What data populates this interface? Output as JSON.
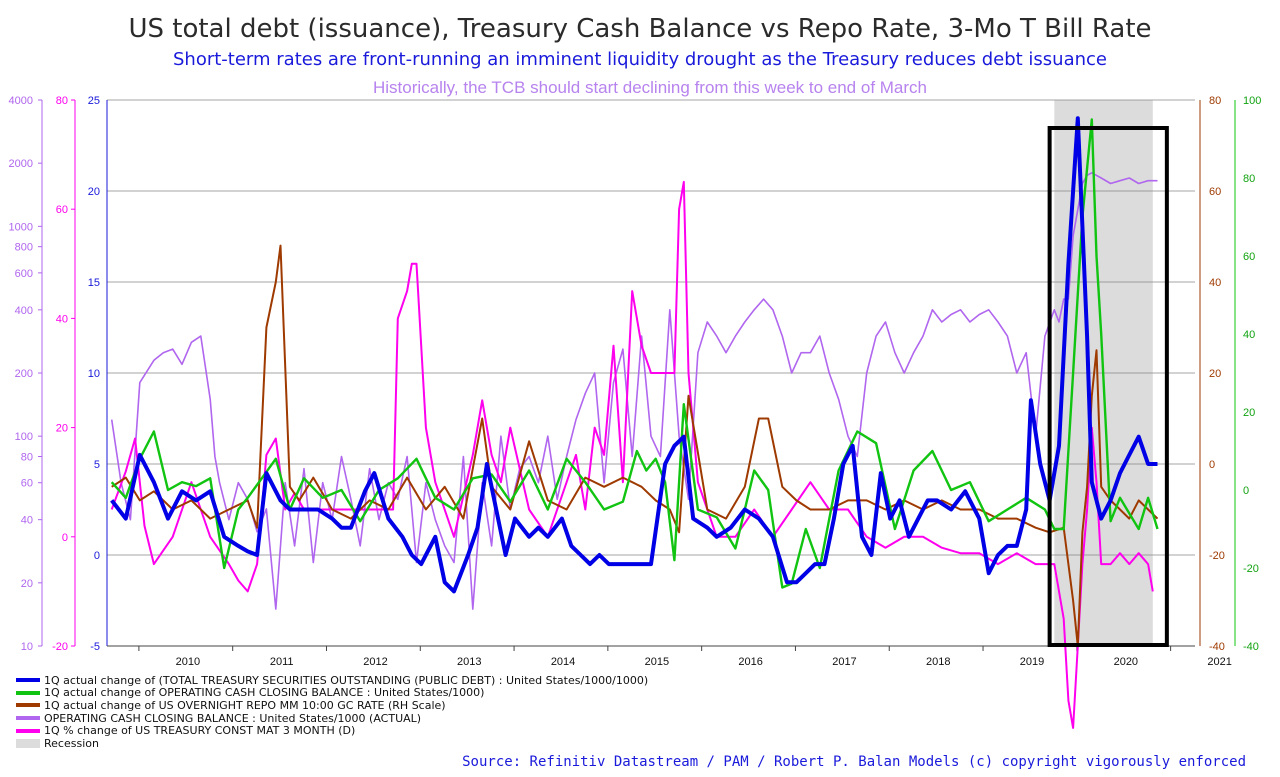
{
  "title": "US total debt (issuance), Treasury Cash Balance vs Repo Rate, 3-Mo T Bill Rate",
  "subtitle": "Short-term rates are front-running an imminent liquidity drought as the Treasury reduces debt issuance",
  "note": "Historically, the TCB should start declining from this week to end of March",
  "source": "Source: Refinitiv Datastream / PAM /  Robert P. Balan Models (c) copyright vigorously enforced",
  "colors": {
    "debt": "#0000e6",
    "cash_change": "#11c411",
    "repo": "#9e3a00",
    "cash_balance": "#b066ee",
    "tbill": "#ff00ee",
    "recession": "#dcdcdc",
    "box": "#000000"
  },
  "legend": [
    {
      "label": "1Q actual change of (TOTAL TREASURY SECURITIES OUTSTANDING (PUBLIC DEBT) : United States/1000/1000)",
      "color": "#0000e6",
      "kind": "line"
    },
    {
      "label": "1Q actual change of OPERATING CASH CLOSING BALANCE : United States/1000)",
      "color": "#11c411",
      "kind": "line"
    },
    {
      "label": "1Q actual change of US OVERNIGHT REPO MM 10:00 GC RATE (RH Scale)",
      "color": "#9e3a00",
      "kind": "line"
    },
    {
      "label": "OPERATING CASH CLOSING BALANCE : United States/1000 (ACTUAL)",
      "color": "#b066ee",
      "kind": "line"
    },
    {
      "label": "1Q % change of US TREASURY CONST MAT 3 MONTH (D)",
      "color": "#ff00ee",
      "kind": "line"
    },
    {
      "label": "Recession",
      "color": "#dcdcdc",
      "kind": "box"
    }
  ],
  "chart_data": {
    "type": "line",
    "x_axis": {
      "ticks": [
        "2010",
        "2011",
        "2012",
        "2013",
        "2014",
        "2015",
        "2016",
        "2017",
        "2018",
        "2019",
        "2020",
        "2021"
      ],
      "range": [
        2009.5,
        2021.1
      ]
    },
    "recession_band": {
      "from": 2019.6,
      "to": 2020.65
    },
    "highlight_box": {
      "from": 2019.55,
      "to": 2020.8
    },
    "axes": {
      "left_log_purple": {
        "ticks": [
          "4000",
          "2000",
          "1000",
          "800",
          "600",
          "400",
          "200",
          "100",
          "80",
          "60",
          "40",
          "20",
          "10"
        ],
        "scale": "log"
      },
      "left_magenta": {
        "ticks": [
          "80",
          "60",
          "40",
          "20",
          "0",
          "-20"
        ],
        "range": [
          -20,
          80
        ]
      },
      "left_blue": {
        "ticks": [
          "25",
          "20",
          "15",
          "10",
          "5",
          "0",
          "-5"
        ],
        "range": [
          -5,
          25
        ]
      },
      "right_brown": {
        "ticks": [
          "80",
          "60",
          "40",
          "20",
          "0",
          "-20",
          "-40"
        ],
        "range": [
          -40,
          80
        ]
      },
      "right_green": {
        "ticks": [
          "100",
          "80",
          "60",
          "40",
          "20",
          "0",
          "-20",
          "-40"
        ],
        "range": [
          -40,
          100
        ]
      }
    },
    "series": [
      {
        "name": "1Q actual change of (TOTAL TREASURY SECURITIES OUTSTANDING (PUBLIC DEBT) : United States/1000/1000)",
        "axis": "left_blue",
        "x": [
          2009.55,
          2009.7,
          2009.85,
          2010.0,
          2010.15,
          2010.3,
          2010.45,
          2010.6,
          2010.75,
          2010.9,
          2011.0,
          2011.1,
          2011.2,
          2011.35,
          2011.45,
          2011.6,
          2011.75,
          2011.9,
          2012.0,
          2012.1,
          2012.25,
          2012.35,
          2012.5,
          2012.65,
          2012.75,
          2012.85,
          2012.95,
          2013.0,
          2013.1,
          2013.2,
          2013.35,
          2013.45,
          2013.55,
          2013.65,
          2013.75,
          2013.85,
          2014.0,
          2014.1,
          2014.2,
          2014.35,
          2014.45,
          2014.55,
          2014.65,
          2014.75,
          2014.85,
          2015.0,
          2015.15,
          2015.3,
          2015.45,
          2015.55,
          2015.65,
          2015.75,
          2015.9,
          2016.0,
          2016.15,
          2016.3,
          2016.45,
          2016.6,
          2016.75,
          2016.85,
          2016.95,
          2017.05,
          2017.15,
          2017.25,
          2017.35,
          2017.45,
          2017.55,
          2017.65,
          2017.75,
          2017.85,
          2017.95,
          2018.05,
          2018.15,
          2018.25,
          2018.35,
          2018.5,
          2018.65,
          2018.8,
          2018.9,
          2019.0,
          2019.1,
          2019.2,
          2019.3,
          2019.35,
          2019.45,
          2019.55,
          2019.65,
          2019.75,
          2019.85,
          2019.95,
          2020.0,
          2020.1,
          2020.2,
          2020.3,
          2020.4,
          2020.5,
          2020.6,
          2020.7
        ],
        "values": [
          3.0,
          2.0,
          5.5,
          4.0,
          2.0,
          3.5,
          3.0,
          3.5,
          1.0,
          0.5,
          0.2,
          0.0,
          4.5,
          3.0,
          2.5,
          2.5,
          2.5,
          2.0,
          1.5,
          1.5,
          3.5,
          4.5,
          2.0,
          1.0,
          0.0,
          -0.5,
          0.5,
          1.0,
          -1.5,
          -2.0,
          0.0,
          1.5,
          5.0,
          2.5,
          0.0,
          2.0,
          1.0,
          1.5,
          1.0,
          2.0,
          0.5,
          0.0,
          -0.5,
          0.0,
          -0.5,
          -0.5,
          -0.5,
          -0.5,
          5.0,
          6.0,
          6.5,
          2.0,
          1.5,
          1.0,
          1.5,
          2.5,
          2.0,
          1.0,
          -1.5,
          -1.5,
          -1.0,
          -0.5,
          -0.5,
          2.0,
          5.0,
          6.0,
          1.0,
          0.0,
          4.5,
          2.0,
          3.0,
          1.0,
          2.0,
          3.0,
          3.0,
          2.5,
          3.5,
          2.0,
          -1.0,
          0.0,
          0.5,
          0.5,
          2.5,
          8.5,
          5.0,
          3.0,
          6.0,
          16.0,
          24.0,
          12.0,
          4.0,
          2.0,
          3.0,
          4.5,
          5.5,
          6.5,
          5.0,
          5.0
        ]
      },
      {
        "name": "1Q actual change of OPERATING CASH CLOSING BALANCE : United States/1000)",
        "axis": "right_green",
        "x": [
          2009.55,
          2009.7,
          2009.85,
          2010.0,
          2010.15,
          2010.3,
          2010.45,
          2010.6,
          2010.75,
          2010.9,
          2011.0,
          2011.15,
          2011.3,
          2011.45,
          2011.6,
          2011.8,
          2012.0,
          2012.2,
          2012.4,
          2012.6,
          2012.8,
          2013.0,
          2013.2,
          2013.4,
          2013.6,
          2013.8,
          2014.0,
          2014.2,
          2014.4,
          2014.6,
          2014.8,
          2015.0,
          2015.15,
          2015.25,
          2015.35,
          2015.45,
          2015.55,
          2015.65,
          2015.8,
          2016.0,
          2016.2,
          2016.4,
          2016.55,
          2016.7,
          2016.8,
          2016.95,
          2017.1,
          2017.3,
          2017.5,
          2017.7,
          2017.9,
          2018.1,
          2018.3,
          2018.5,
          2018.7,
          2018.9,
          2019.1,
          2019.3,
          2019.5,
          2019.6,
          2019.7,
          2019.8,
          2019.9,
          2020.0,
          2020.05,
          2020.1,
          2020.2,
          2020.3,
          2020.4,
          2020.5,
          2020.6,
          2020.7
        ],
        "values": [
          2,
          -2,
          8,
          15,
          0,
          2,
          1,
          3,
          -20,
          -5,
          -2,
          3,
          8,
          -5,
          3,
          -2,
          0,
          -8,
          0,
          3,
          8,
          -2,
          -5,
          3,
          4,
          -3,
          5,
          -5,
          8,
          2,
          -5,
          -3,
          10,
          5,
          8,
          2,
          -18,
          22,
          -5,
          -7,
          -15,
          5,
          0,
          -25,
          -24,
          -10,
          -20,
          5,
          15,
          12,
          -10,
          5,
          10,
          0,
          2,
          -8,
          -5,
          -2,
          -5,
          -10,
          -10,
          30,
          70,
          95,
          60,
          40,
          -8,
          -2,
          -6,
          -10,
          -2,
          -10
        ]
      },
      {
        "name": "1Q actual change of US OVERNIGHT REPO MM 10:00 GC RATE (RH Scale)",
        "axis": "right_brown",
        "x": [
          2009.55,
          2009.7,
          2009.85,
          2010.0,
          2010.2,
          2010.4,
          2010.6,
          2010.8,
          2011.0,
          2011.1,
          2011.2,
          2011.3,
          2011.35,
          2011.45,
          2011.55,
          2011.7,
          2011.9,
          2012.1,
          2012.3,
          2012.5,
          2012.7,
          2012.9,
          2013.1,
          2013.3,
          2013.5,
          2013.6,
          2013.8,
          2014.0,
          2014.2,
          2014.4,
          2014.6,
          2014.8,
          2015.0,
          2015.2,
          2015.35,
          2015.5,
          2015.6,
          2015.7,
          2015.9,
          2016.1,
          2016.3,
          2016.45,
          2016.55,
          2016.7,
          2016.85,
          2017.0,
          2017.2,
          2017.4,
          2017.6,
          2017.8,
          2018.0,
          2018.2,
          2018.4,
          2018.6,
          2018.8,
          2019.0,
          2019.2,
          2019.4,
          2019.55,
          2019.7,
          2019.8,
          2019.85,
          2019.9,
          2019.95,
          2020.0,
          2020.05,
          2020.1,
          2020.2,
          2020.3,
          2020.4,
          2020.5,
          2020.6,
          2020.7
        ],
        "values": [
          -5,
          -3,
          -8,
          -6,
          -10,
          -8,
          -12,
          -10,
          -8,
          -14,
          30,
          40,
          48,
          -5,
          -8,
          -3,
          -10,
          -12,
          -8,
          -10,
          -3,
          -10,
          -5,
          -12,
          10,
          -5,
          -10,
          5,
          -8,
          -10,
          -3,
          -5,
          -3,
          -5,
          -8,
          -10,
          -15,
          15,
          -10,
          -12,
          -5,
          10,
          10,
          -5,
          -8,
          -10,
          -10,
          -8,
          -8,
          -10,
          -8,
          -10,
          -8,
          -10,
          -10,
          -12,
          -12,
          -14,
          -15,
          -14,
          -30,
          -40,
          -15,
          -5,
          15,
          25,
          -5,
          -8,
          -10,
          -12,
          -8,
          -10,
          -12
        ]
      },
      {
        "name": "OPERATING CASH CLOSING BALANCE : United States/1000 (ACTUAL)",
        "axis": "left_log_purple",
        "x": [
          2009.55,
          2009.65,
          2009.75,
          2009.85,
          2010.0,
          2010.1,
          2010.2,
          2010.3,
          2010.4,
          2010.5,
          2010.6,
          2010.65,
          2010.7,
          2010.8,
          2010.9,
          2011.0,
          2011.1,
          2011.2,
          2011.3,
          2011.4,
          2011.5,
          2011.6,
          2011.7,
          2011.8,
          2011.9,
          2012.0,
          2012.1,
          2012.2,
          2012.3,
          2012.4,
          2012.5,
          2012.6,
          2012.7,
          2012.8,
          2012.9,
          2013.0,
          2013.1,
          2013.2,
          2013.3,
          2013.4,
          2013.5,
          2013.6,
          2013.7,
          2013.8,
          2013.9,
          2014.0,
          2014.1,
          2014.2,
          2014.3,
          2014.4,
          2014.5,
          2014.6,
          2014.7,
          2014.8,
          2014.9,
          2015.0,
          2015.1,
          2015.2,
          2015.3,
          2015.4,
          2015.5,
          2015.6,
          2015.7,
          2015.8,
          2015.9,
          2016.0,
          2016.1,
          2016.2,
          2016.3,
          2016.4,
          2016.5,
          2016.6,
          2016.7,
          2016.8,
          2016.9,
          2017.0,
          2017.1,
          2017.2,
          2017.3,
          2017.4,
          2017.5,
          2017.6,
          2017.7,
          2017.8,
          2017.9,
          2018.0,
          2018.1,
          2018.2,
          2018.3,
          2018.4,
          2018.5,
          2018.6,
          2018.7,
          2018.8,
          2018.9,
          2019.0,
          2019.1,
          2019.2,
          2019.3,
          2019.4,
          2019.5,
          2019.6,
          2019.65,
          2019.7,
          2019.75,
          2019.8,
          2019.85,
          2019.9,
          2019.95,
          2020.0,
          2020.1,
          2020.2,
          2020.3,
          2020.4,
          2020.5,
          2020.6,
          2020.7
        ],
        "values": [
          120,
          60,
          40,
          180,
          230,
          250,
          260,
          220,
          280,
          300,
          150,
          80,
          60,
          40,
          60,
          50,
          35,
          45,
          15,
          60,
          30,
          70,
          25,
          60,
          40,
          80,
          50,
          30,
          70,
          40,
          60,
          50,
          80,
          25,
          60,
          40,
          30,
          25,
          80,
          15,
          60,
          30,
          100,
          45,
          70,
          80,
          60,
          100,
          50,
          80,
          120,
          160,
          200,
          60,
          180,
          260,
          80,
          300,
          100,
          80,
          400,
          100,
          50,
          250,
          350,
          300,
          250,
          300,
          350,
          400,
          450,
          400,
          300,
          200,
          250,
          250,
          300,
          200,
          150,
          100,
          80,
          200,
          300,
          350,
          250,
          200,
          250,
          300,
          400,
          350,
          380,
          400,
          350,
          380,
          400,
          350,
          300,
          200,
          250,
          100,
          300,
          400,
          350,
          450,
          450,
          900,
          1200,
          1600,
          1750,
          1800,
          1700,
          1600,
          1650,
          1700,
          1600,
          1650,
          1650
        ]
      },
      {
        "name": "1Q % change of US TREASURY CONST MAT 3 MONTH (D)",
        "axis": "left_magenta",
        "x": [
          2009.55,
          2009.7,
          2009.8,
          2009.9,
          2010.0,
          2010.2,
          2010.4,
          2010.6,
          2010.8,
          2010.9,
          2011.0,
          2011.1,
          2011.2,
          2011.3,
          2011.4,
          2011.5,
          2011.6,
          2011.8,
          2012.0,
          2012.2,
          2012.4,
          2012.5,
          2012.55,
          2012.6,
          2012.7,
          2012.75,
          2012.8,
          2012.9,
          2013.0,
          2013.2,
          2013.4,
          2013.5,
          2013.6,
          2013.7,
          2013.8,
          2014.0,
          2014.2,
          2014.4,
          2014.5,
          2014.6,
          2014.7,
          2014.8,
          2014.9,
          2015.0,
          2015.1,
          2015.2,
          2015.3,
          2015.4,
          2015.5,
          2015.55,
          2015.6,
          2015.65,
          2015.7,
          2015.8,
          2015.9,
          2016.0,
          2016.2,
          2016.4,
          2016.6,
          2016.8,
          2017.0,
          2017.2,
          2017.4,
          2017.6,
          2017.8,
          2018.0,
          2018.2,
          2018.4,
          2018.6,
          2018.8,
          2019.0,
          2019.2,
          2019.4,
          2019.6,
          2019.7,
          2019.75,
          2019.8,
          2019.85,
          2019.9,
          2019.95,
          2020.0,
          2020.05,
          2020.1,
          2020.2,
          2020.3,
          2020.4,
          2020.5,
          2020.6,
          2020.65
        ],
        "values": [
          5,
          12,
          18,
          2,
          -5,
          0,
          10,
          0,
          -5,
          -8,
          -10,
          -5,
          15,
          18,
          5,
          8,
          5,
          5,
          5,
          5,
          5,
          5,
          5,
          40,
          45,
          50,
          50,
          20,
          10,
          0,
          15,
          25,
          15,
          10,
          20,
          5,
          0,
          10,
          15,
          5,
          20,
          15,
          35,
          10,
          45,
          35,
          30,
          30,
          30,
          30,
          60,
          65,
          30,
          10,
          5,
          0,
          0,
          5,
          0,
          5,
          10,
          5,
          5,
          0,
          -2,
          0,
          0,
          -2,
          -3,
          -3,
          -5,
          -3,
          -5,
          -5,
          -15,
          -30,
          -35,
          -20,
          -5,
          5,
          20,
          10,
          -5,
          -5,
          -3,
          -5,
          -3,
          -5,
          -10
        ]
      }
    ]
  }
}
